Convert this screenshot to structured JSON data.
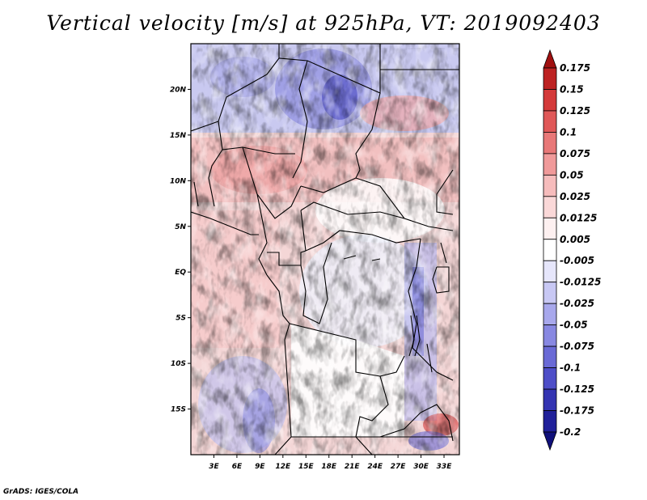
{
  "title": "Vertical velocity [m/s] at 925hPa, VT: 2019092403",
  "credit": "GrADS: IGES/COLA",
  "map": {
    "lon_range": [
      0,
      35
    ],
    "lat_range": [
      -20,
      25
    ],
    "lon_ticks": [
      {
        "value": 3,
        "label": "3E"
      },
      {
        "value": 6,
        "label": "6E"
      },
      {
        "value": 9,
        "label": "9E"
      },
      {
        "value": 12,
        "label": "12E"
      },
      {
        "value": 15,
        "label": "15E"
      },
      {
        "value": 18,
        "label": "18E"
      },
      {
        "value": 21,
        "label": "21E"
      },
      {
        "value": 24,
        "label": "24E"
      },
      {
        "value": 27,
        "label": "27E"
      },
      {
        "value": 30,
        "label": "30E"
      },
      {
        "value": 33,
        "label": "33E"
      }
    ],
    "lat_ticks": [
      {
        "value": 20,
        "label": "20N"
      },
      {
        "value": 15,
        "label": "15N"
      },
      {
        "value": 10,
        "label": "10N"
      },
      {
        "value": 5,
        "label": "5N"
      },
      {
        "value": 0,
        "label": "EQ"
      },
      {
        "value": -5,
        "label": "5S"
      },
      {
        "value": -10,
        "label": "10S"
      },
      {
        "value": -15,
        "label": "15S"
      }
    ]
  },
  "colorbar": {
    "labels": [
      "0.175",
      "0.15",
      "0.125",
      "0.1",
      "0.075",
      "0.05",
      "0.025",
      "0.0125",
      "0.005",
      "-0.005",
      "-0.0125",
      "-0.025",
      "-0.05",
      "-0.075",
      "-0.1",
      "-0.125",
      "-0.175",
      "-0.2"
    ],
    "colors": [
      "#a01010",
      "#bd2222",
      "#d43a3a",
      "#e05858",
      "#e87878",
      "#f09a9a",
      "#f6bcbc",
      "#fad8d8",
      "#fdf0f0",
      "#ffffff",
      "#e6e6fb",
      "#c8c8f4",
      "#a8a8ec",
      "#8888e2",
      "#6a6ad6",
      "#4e4ec8",
      "#3434b2",
      "#20209a",
      "#10107a"
    ]
  },
  "colors": {
    "positive": "#e05858",
    "negative": "#5a5ad8",
    "border": "#000000"
  }
}
